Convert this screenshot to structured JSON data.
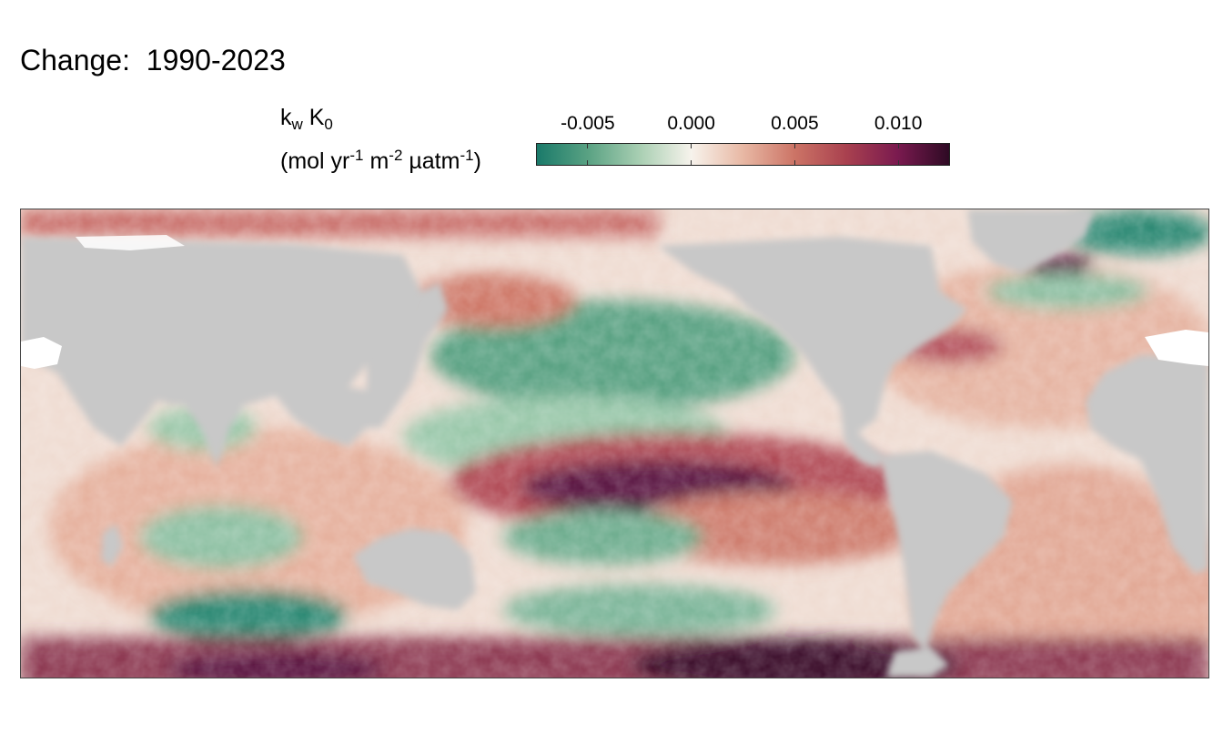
{
  "title": "Change:  1990-2023",
  "legend": {
    "k": "k",
    "k_sub": "w",
    "K": " K",
    "K_sub": "0",
    "unit_open": "(mol yr",
    "unit_exp1": "-1",
    "unit_m": " m",
    "unit_exp2": "-2",
    "unit_uatm": " µatm",
    "unit_exp3": "-1",
    "unit_close": ")",
    "ticks": [
      {
        "label": "-0.005",
        "value": -0.005
      },
      {
        "label": "0.000",
        "value": 0.0
      },
      {
        "label": "0.005",
        "value": 0.005
      },
      {
        "label": "0.010",
        "value": 0.01
      }
    ],
    "range": [
      -0.0075,
      0.0125
    ],
    "palette": [
      "#1a7a6a",
      "#5aa283",
      "#a9cfb3",
      "#f7f3ec",
      "#e8b8a4",
      "#cc7466",
      "#a9414f",
      "#7a1a4f",
      "#2e0a24"
    ]
  },
  "colors": {
    "land": "#c8c8c8",
    "no_data": "#ffffff",
    "positive_strong": "#4a0f3a",
    "positive": "#c47468",
    "negative": "#2e8a74",
    "neutral": "#f7f3ec"
  }
}
